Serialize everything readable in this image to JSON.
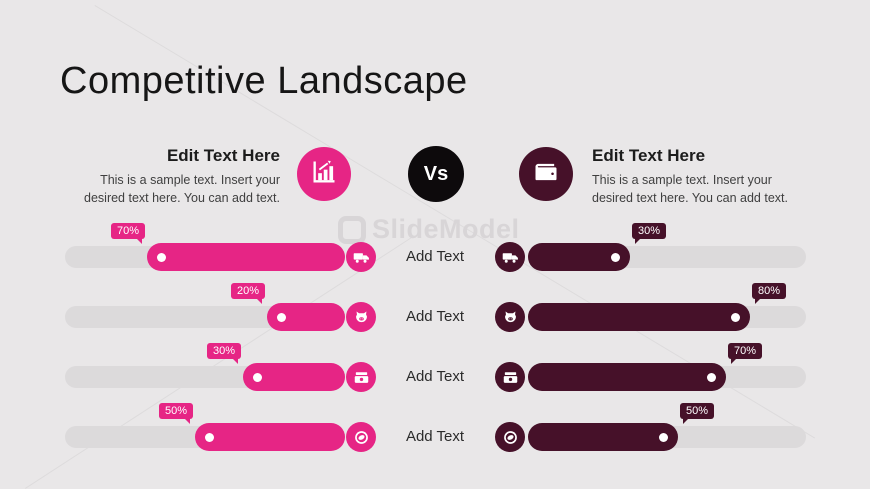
{
  "slide": {
    "title": "Competitive Landscape",
    "watermark": "SlideModel"
  },
  "header": {
    "left": {
      "title": "Edit Text Here",
      "body": "This is a sample text. Insert your desired text here. You can add text.",
      "icon": "bar-chart-icon"
    },
    "versus": "Vs",
    "right": {
      "title": "Edit Text Here",
      "body": "This is a sample text. Insert your desired text here. You can add text.",
      "icon": "wallet-icon"
    }
  },
  "comparison": {
    "center_label": "Add Text",
    "rows": [
      {
        "icon": "truck-icon",
        "left_percent": "70%",
        "right_percent": "30%"
      },
      {
        "icon": "piggy-bank-icon",
        "left_percent": "20%",
        "right_percent": "80%"
      },
      {
        "icon": "banknote-icon",
        "left_percent": "30%",
        "right_percent": "70%"
      },
      {
        "icon": "coin-icon",
        "left_percent": "50%",
        "right_percent": "50%"
      }
    ]
  },
  "colors": {
    "left_accent": "#e62585",
    "right_accent": "#461129",
    "versus_bg": "#0d0a0c",
    "track": "#dcdadb",
    "background": "#e9e7e8"
  }
}
